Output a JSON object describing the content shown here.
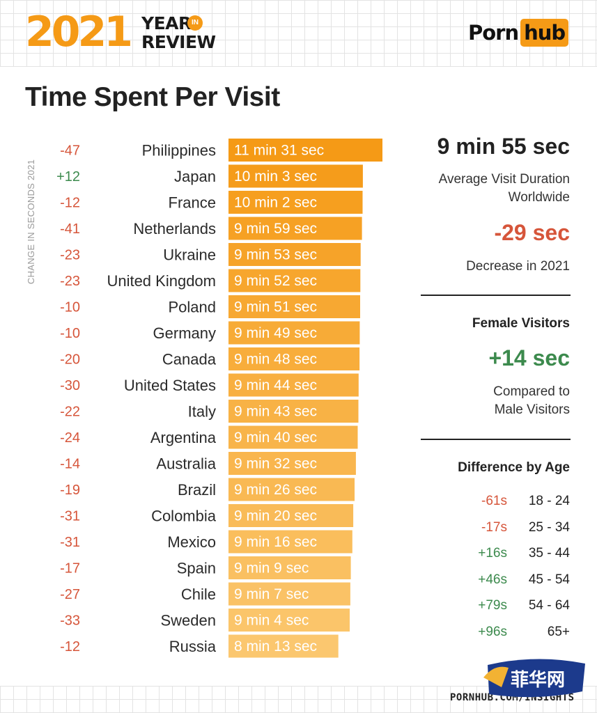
{
  "header": {
    "year": "2021",
    "year_in_review_line1": "YEAR",
    "year_in_review_badge": "IN",
    "year_in_review_line2": "REVIEW",
    "brand_part1": "Porn",
    "brand_part2": "hub"
  },
  "title": "Time Spent Per Visit",
  "vertical_label": "CHANGE IN SECONDS 2021",
  "colors": {
    "accent": "#f59a16",
    "negative": "#d6553a",
    "positive": "#3c8a4d",
    "bar_dark": "#f59a16",
    "bar_light": "#fbc76f"
  },
  "chart_data": {
    "type": "bar",
    "orientation": "horizontal",
    "categories": [
      "Philippines",
      "Japan",
      "France",
      "Netherlands",
      "Ukraine",
      "United Kingdom",
      "Poland",
      "Germany",
      "Canada",
      "United States",
      "Italy",
      "Argentina",
      "Australia",
      "Brazil",
      "Colombia",
      "Mexico",
      "Spain",
      "Chile",
      "Sweden",
      "Russia"
    ],
    "values_seconds": [
      691,
      603,
      602,
      599,
      593,
      592,
      591,
      589,
      588,
      584,
      583,
      580,
      572,
      566,
      560,
      556,
      549,
      547,
      544,
      493
    ],
    "value_labels": [
      "11 min 31 sec",
      "10 min 3 sec",
      "10 min 2 sec",
      "9 min 59 sec",
      "9 min 53 sec",
      "9 min 52 sec",
      "9 min 51 sec",
      "9 min 49 sec",
      "9 min 48 sec",
      "9 min 44 sec",
      "9 min 43 sec",
      "9 min 40 sec",
      "9 min 32 sec",
      "9 min 26 sec",
      "9 min 20 sec",
      "9 min 16 sec",
      "9 min 9 sec",
      "9 min 7 sec",
      "9 min 4 sec",
      "8 min 13 sec"
    ],
    "change_labels": [
      "-47",
      "+12",
      "-12",
      "-41",
      "-23",
      "-23",
      "-10",
      "-10",
      "-20",
      "-30",
      "-22",
      "-24",
      "-14",
      "-19",
      "-31",
      "-31",
      "-17",
      "-27",
      "-33",
      "-12"
    ],
    "change_values": [
      -47,
      12,
      -12,
      -41,
      -23,
      -23,
      -10,
      -10,
      -20,
      -30,
      -22,
      -24,
      -14,
      -19,
      -31,
      -31,
      -17,
      -27,
      -33,
      -12
    ],
    "title": "Time Spent Per Visit",
    "xlabel": "",
    "ylabel": "CHANGE IN SECONDS 2021",
    "xlim": [
      0,
      691
    ]
  },
  "stats": {
    "avg_value": "9 min 55 sec",
    "avg_caption_line1": "Average Visit Duration",
    "avg_caption_line2": "Worldwide",
    "change_value": "-29 sec",
    "change_caption": "Decrease in 2021",
    "female_heading": "Female Visitors",
    "female_value": "+14 sec",
    "female_caption_line1": "Compared to",
    "female_caption_line2": "Male Visitors",
    "age_heading": "Difference by Age",
    "age_rows": [
      {
        "diff": "-61s",
        "range": "18 - 24",
        "positive": false
      },
      {
        "diff": "-17s",
        "range": "25 - 34",
        "positive": false
      },
      {
        "diff": "+16s",
        "range": "35 - 44",
        "positive": true
      },
      {
        "diff": "+46s",
        "range": "45 - 54",
        "positive": true
      },
      {
        "diff": "+79s",
        "range": "54 - 64",
        "positive": true
      },
      {
        "diff": "+96s",
        "range": "65+",
        "positive": true
      }
    ]
  },
  "footer": {
    "url": "PORNHUB.COM/INSIGHTS",
    "watermark_text": "菲华网"
  }
}
